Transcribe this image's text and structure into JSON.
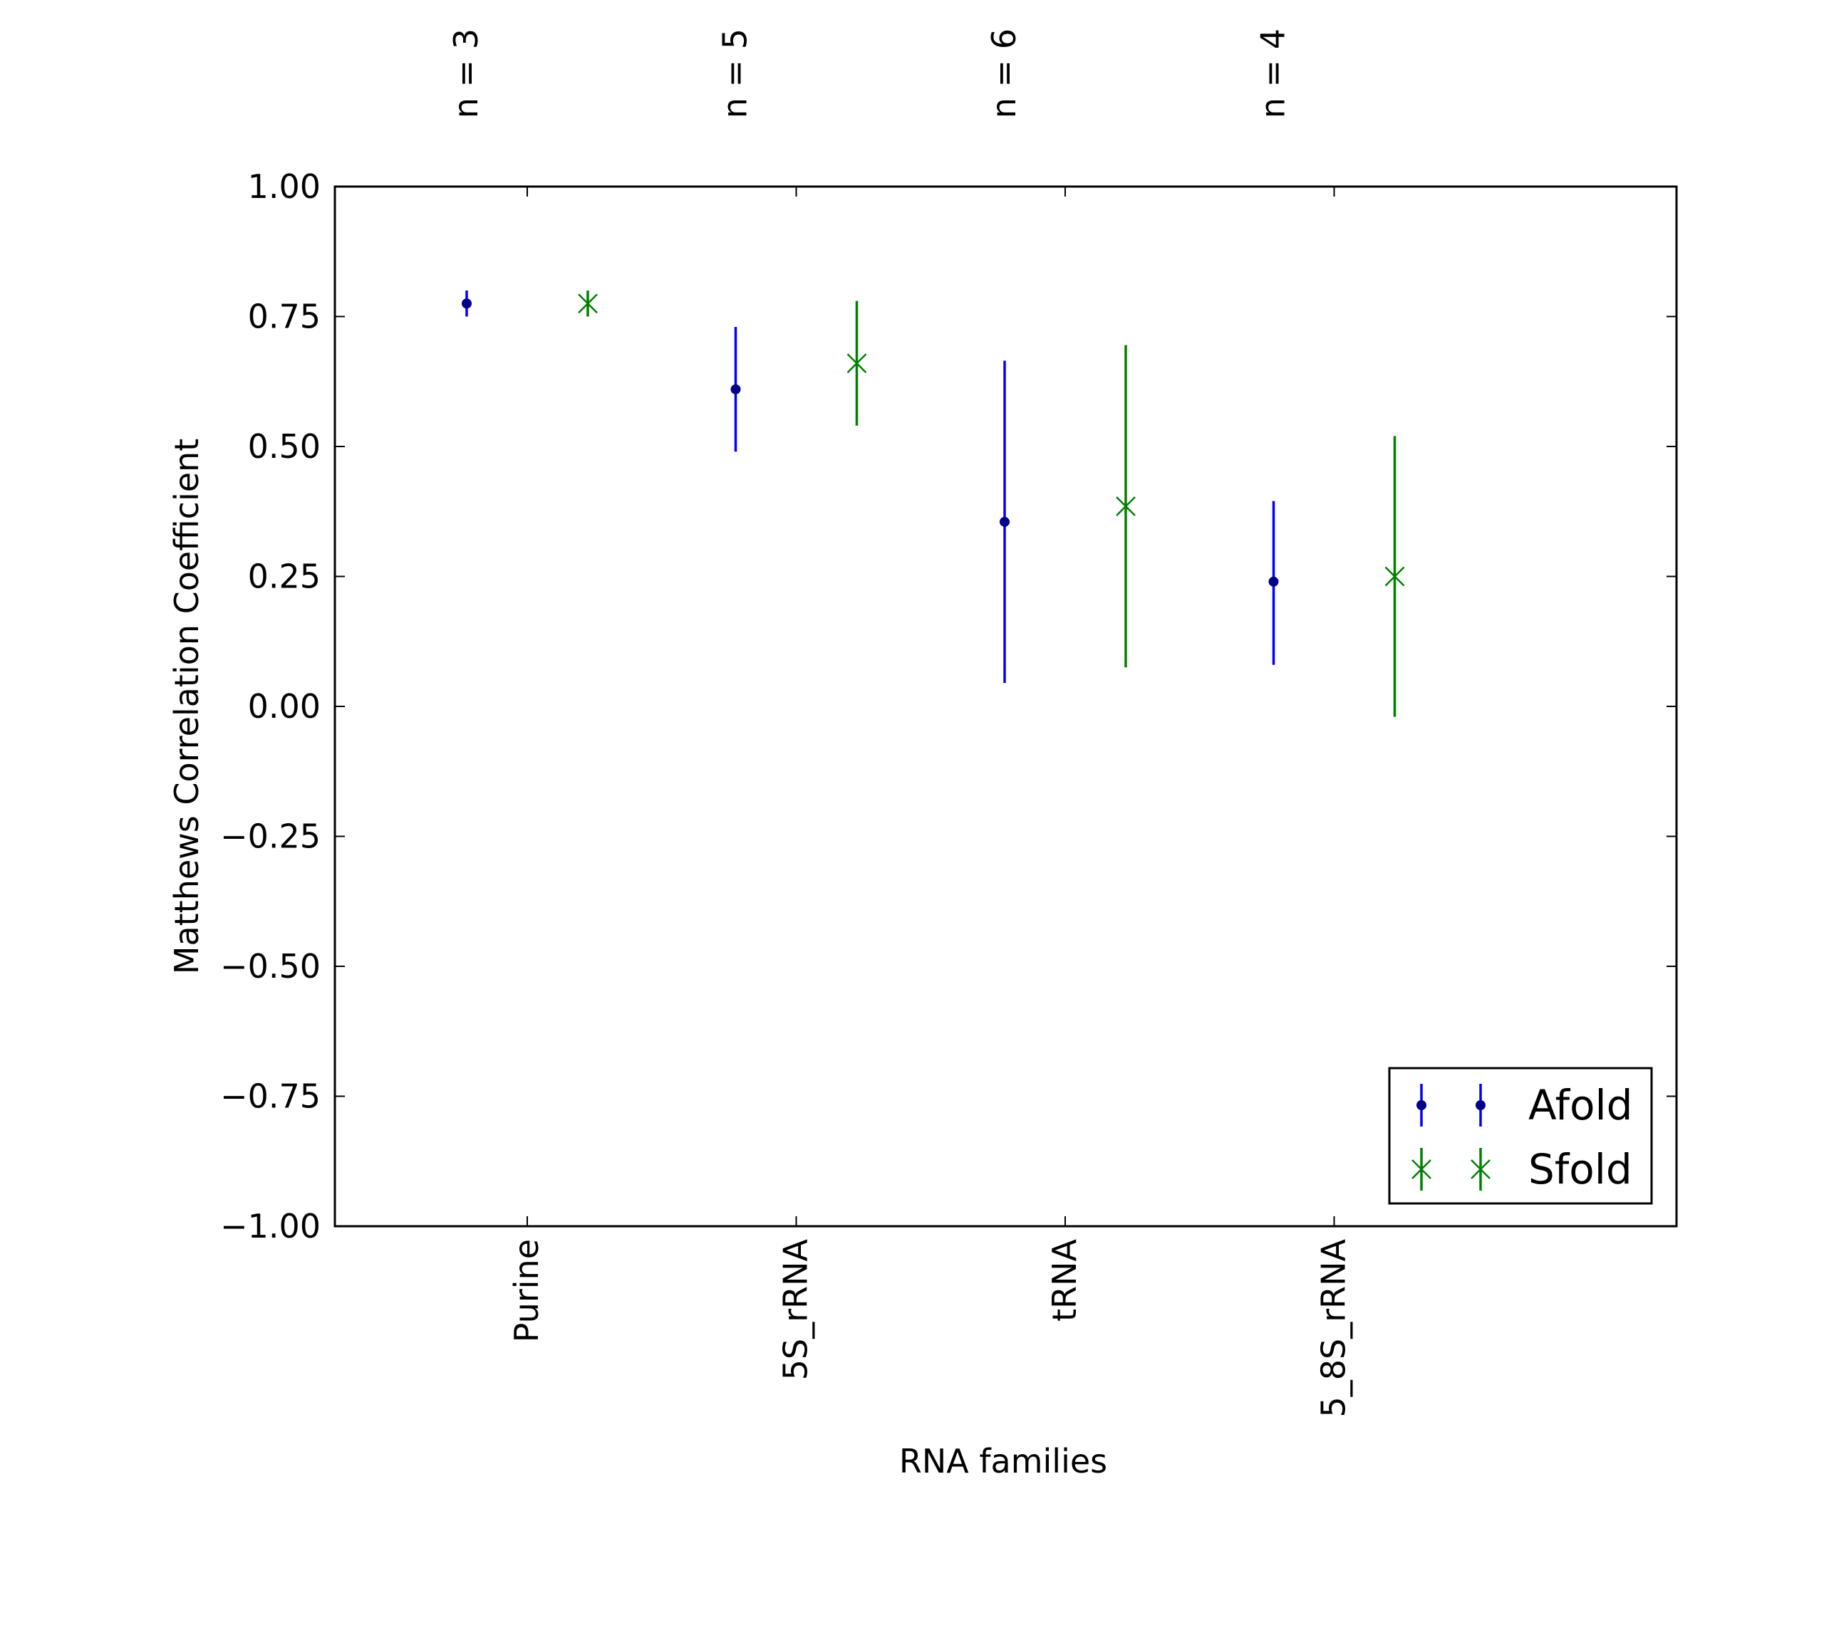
{
  "chart_data": {
    "type": "errorbar",
    "xlabel": "RNA families",
    "ylabel": "Matthews Correlation Coefficient",
    "categories": [
      "Purine",
      "5S_rRNA",
      "tRNA",
      "5_8S_rRNA"
    ],
    "sample_sizes": [
      "n = 3",
      "n = 5",
      "n = 6",
      "n = 4"
    ],
    "ylim": [
      -1.0,
      1.0
    ],
    "yticks": [
      "−1.00",
      "−0.75",
      "−0.50",
      "−0.25",
      "0.00",
      "0.25",
      "0.50",
      "0.75",
      "1.00"
    ],
    "grid": false,
    "legend": "lower-right",
    "series": [
      {
        "name": "Afold",
        "color": "#0000ff",
        "marker": "dot",
        "values": [
          0.775,
          0.61,
          0.355,
          0.24
        ],
        "error_low": [
          0.75,
          0.49,
          0.045,
          0.08
        ],
        "error_high": [
          0.8,
          0.73,
          0.665,
          0.395
        ]
      },
      {
        "name": "Sfold",
        "color": "#008000",
        "marker": "x",
        "values": [
          0.775,
          0.66,
          0.385,
          0.25
        ],
        "error_low": [
          0.75,
          0.54,
          0.075,
          -0.02
        ],
        "error_high": [
          0.8,
          0.78,
          0.695,
          0.52
        ]
      }
    ]
  }
}
